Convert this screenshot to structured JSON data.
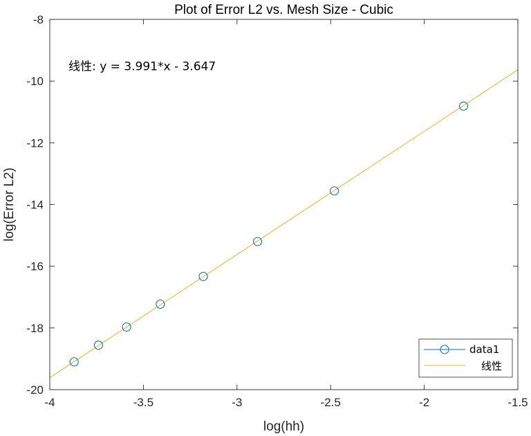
{
  "chart_data": {
    "type": "scatter",
    "title": "Plot of Error L2 vs. Mesh Size - Cubic",
    "xlabel": "log(hh)",
    "ylabel": "log(Error L2)",
    "xlim": [
      -4,
      -1.5
    ],
    "ylim": [
      -20,
      -8
    ],
    "xticks": [
      -4,
      -3.5,
      -3,
      -2.5,
      -2,
      -1.5
    ],
    "xtick_labels": [
      "-4",
      "-3.5",
      "-3",
      "-2.5",
      "-2",
      "-1.5"
    ],
    "yticks": [
      -20,
      -18,
      -16,
      -14,
      -12,
      -10,
      -8
    ],
    "ytick_labels": [
      "-20",
      "-18",
      "-16",
      "-14",
      "-12",
      "-10",
      "-8"
    ],
    "grid": false,
    "legend_position": "bottom-right",
    "series": [
      {
        "name": "data1",
        "marker": "circle",
        "line": "none",
        "color": "#0072BD",
        "x": [
          -3.87,
          -3.74,
          -3.59,
          -3.41,
          -3.18,
          -2.89,
          -2.48,
          -1.79
        ],
        "y": [
          -19.1,
          -18.56,
          -17.97,
          -17.23,
          -16.33,
          -15.2,
          -13.56,
          -10.81
        ]
      },
      {
        "name": "线性",
        "marker": "none",
        "line": "solid",
        "color": "#EDB120",
        "fit": {
          "slope": 3.991,
          "intercept": -3.647
        },
        "x_range": [
          -4,
          -1.5
        ]
      }
    ],
    "annotations": [
      {
        "text": "线性:  y = 3.991*x - 3.647",
        "x": -3.9,
        "y": -9.65
      }
    ]
  }
}
